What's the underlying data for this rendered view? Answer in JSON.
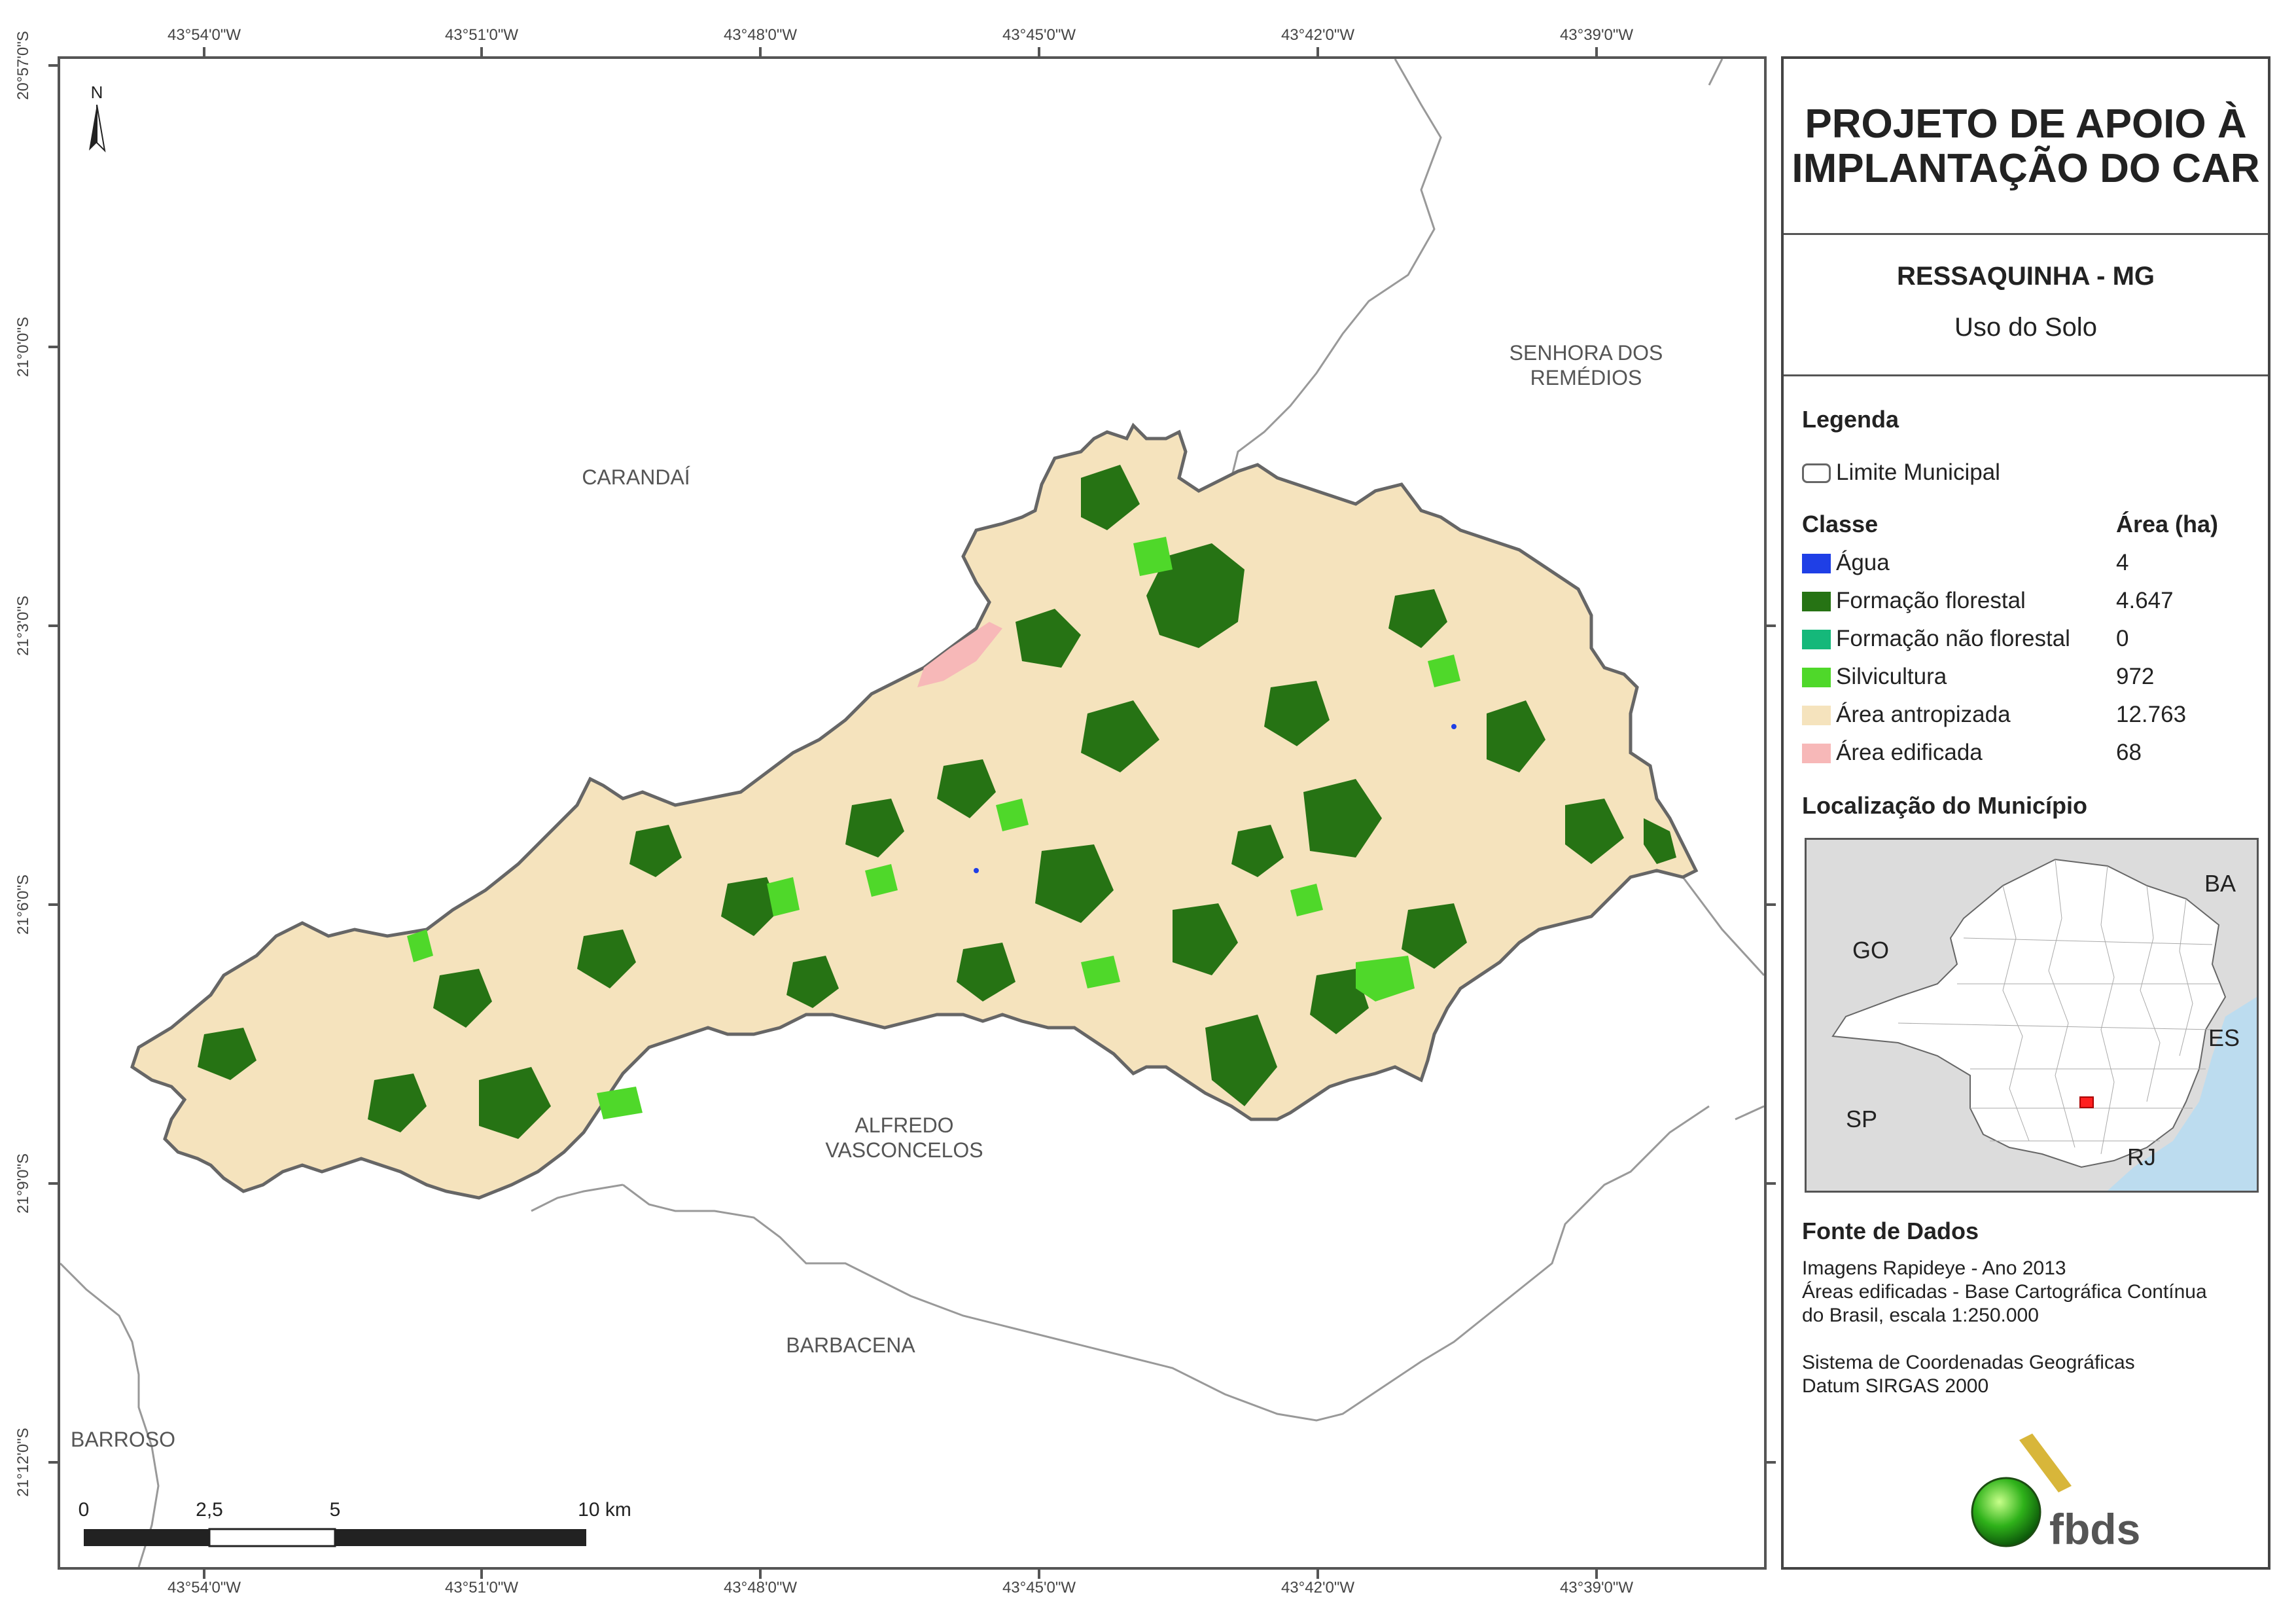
{
  "map": {
    "coords_top": [
      "43°54'0\"W",
      "43°51'0\"W",
      "43°48'0\"W",
      "43°45'0\"W",
      "43°42'0\"W",
      "43°39'0\"W"
    ],
    "coords_bottom": [
      "43°54'0\"W",
      "43°51'0\"W",
      "43°48'0\"W",
      "43°45'0\"W",
      "43°42'0\"W",
      "43°39'0\"W"
    ],
    "coords_left": [
      "20°57'0\"S",
      "21°0'0\"S",
      "21°3'0\"S",
      "21°6'0\"S",
      "21°9'0\"S",
      "21°12'0\"S"
    ],
    "north_label": "N",
    "places": {
      "carandai": "CARANDAÍ",
      "senhora_line1": "SENHORA DOS",
      "senhora_line2": "REMÉDIOS",
      "alfredo_line1": "ALFREDO",
      "alfredo_line2": "VASCONCELOS",
      "barbacena": "BARBACENA",
      "barroso": "BARROSO"
    },
    "scale": {
      "labels": [
        "0",
        "2,5",
        "5",
        "10 km"
      ]
    },
    "colors": {
      "anthropized": "#f5e3bd",
      "forest": "#267314",
      "silviculture": "#4fd82a",
      "built": "#f7b8b8",
      "water": "#1f3fe6",
      "boundary": "#666666"
    }
  },
  "panel": {
    "title_line1": "PROJETO DE APOIO À",
    "title_line2": "IMPLANTAÇÃO DO CAR",
    "subtitle": "RESSAQUINHA - MG",
    "theme": "Uso do Solo",
    "legend_heading": "Legenda",
    "limit_label": "Limite Municipal",
    "class_heading": "Classe",
    "area_heading": "Área (ha)",
    "classes": [
      {
        "label": "Água",
        "area": "4",
        "color": "#1f3fe6"
      },
      {
        "label": "Formação florestal",
        "area": "4.647",
        "color": "#267314"
      },
      {
        "label": "Formação não florestal",
        "area": "0",
        "color": "#15b87a"
      },
      {
        "label": "Silvicultura",
        "area": "972",
        "color": "#4fd82a"
      },
      {
        "label": "Área antropizada",
        "area": "12.763",
        "color": "#f5e3bd"
      },
      {
        "label": "Área edificada",
        "area": "68",
        "color": "#f7b8b8"
      }
    ],
    "location_heading": "Localização do Município",
    "inset_labels": {
      "ba": "BA",
      "go": "GO",
      "es": "ES",
      "sp": "SP",
      "rj": "RJ"
    },
    "source_heading": "Fonte de Dados",
    "source_lines": [
      "Imagens Rapideye - Ano 2013",
      "Áreas edificadas - Base Cartográfica Contínua",
      "do Brasil, escala 1:250.000"
    ],
    "crs_lines": [
      "Sistema de Coordenadas Geográficas",
      "Datum SIRGAS 2000"
    ],
    "logo_text": "fbds"
  }
}
